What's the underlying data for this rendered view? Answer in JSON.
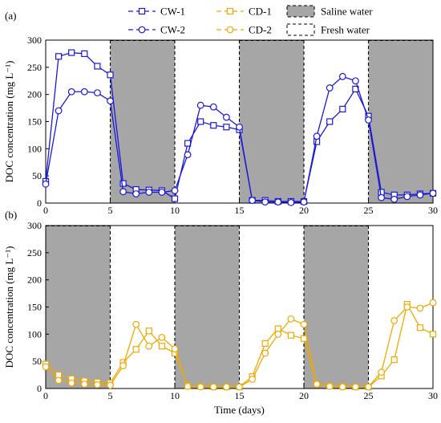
{
  "chart_data": [
    {
      "type": "line",
      "panel_label": "(a)",
      "ylabel": "DOC concentration (mg L⁻¹)",
      "xlabel": "",
      "xlim": [
        0,
        30
      ],
      "ylim": [
        0,
        300
      ],
      "xticks": [
        0,
        5,
        10,
        15,
        20,
        25,
        30
      ],
      "yticks": [
        0,
        50,
        100,
        150,
        200,
        250,
        300
      ],
      "grid": false,
      "shaded_periods": [
        {
          "type": "saline",
          "x": [
            5,
            10
          ]
        },
        {
          "type": "fresh",
          "x": [
            10,
            15
          ]
        },
        {
          "type": "saline",
          "x": [
            15,
            20
          ]
        },
        {
          "type": "fresh",
          "x": [
            20,
            25
          ]
        },
        {
          "type": "saline",
          "x": [
            25,
            30
          ]
        }
      ],
      "series": [
        {
          "name": "CW-1",
          "marker": "square",
          "color": "#1a1ad6",
          "x": [
            0,
            1,
            2,
            3,
            4,
            5,
            6,
            7,
            8,
            9,
            10,
            11,
            12,
            13,
            14,
            15,
            16,
            17,
            18,
            19,
            20,
            21,
            22,
            23,
            24,
            25,
            26,
            27,
            28,
            29,
            30
          ],
          "y": [
            40,
            270,
            277,
            275,
            252,
            236,
            36,
            25,
            24,
            23,
            8,
            110,
            150,
            143,
            140,
            135,
            5,
            5,
            3,
            3,
            3,
            113,
            150,
            173,
            210,
            160,
            20,
            15,
            15,
            17,
            18
          ]
        },
        {
          "name": "CW-2",
          "marker": "circle",
          "color": "#1a1ad6",
          "x": [
            0,
            1,
            2,
            3,
            4,
            5,
            6,
            7,
            8,
            9,
            10,
            11,
            12,
            13,
            14,
            15,
            16,
            17,
            18,
            19,
            20,
            21,
            22,
            23,
            24,
            25,
            26,
            27,
            28,
            29,
            30
          ],
          "y": [
            35,
            170,
            205,
            205,
            203,
            188,
            21,
            17,
            20,
            20,
            23,
            89,
            180,
            177,
            158,
            140,
            5,
            2,
            2,
            1,
            2,
            123,
            212,
            233,
            225,
            153,
            10,
            7,
            12,
            15,
            18
          ]
        }
      ]
    },
    {
      "type": "line",
      "panel_label": "(b)",
      "ylabel": "DOC concentration (mg L⁻¹)",
      "xlabel": "Time (days)",
      "xlim": [
        0,
        30
      ],
      "ylim": [
        0,
        300
      ],
      "xticks": [
        0,
        5,
        10,
        15,
        20,
        25,
        30
      ],
      "yticks": [
        0,
        50,
        100,
        150,
        200,
        250,
        300
      ],
      "grid": false,
      "shaded_periods": [
        {
          "type": "saline",
          "x": [
            0,
            5
          ]
        },
        {
          "type": "fresh",
          "x": [
            5,
            10
          ]
        },
        {
          "type": "saline",
          "x": [
            10,
            15
          ]
        },
        {
          "type": "fresh",
          "x": [
            15,
            20
          ]
        },
        {
          "type": "saline",
          "x": [
            20,
            25
          ]
        },
        {
          "type": "fresh",
          "x": [
            25,
            30
          ]
        }
      ],
      "series": [
        {
          "name": "CD-1",
          "marker": "square",
          "color": "#f0a800",
          "x": [
            0,
            1,
            2,
            3,
            4,
            5,
            6,
            7,
            8,
            9,
            10,
            11,
            12,
            13,
            14,
            15,
            16,
            17,
            18,
            19,
            20,
            21,
            22,
            23,
            24,
            25,
            26,
            27,
            28,
            29,
            30
          ],
          "y": [
            45,
            25,
            18,
            14,
            12,
            10,
            48,
            72,
            106,
            78,
            65,
            5,
            4,
            3,
            3,
            3,
            22,
            83,
            110,
            98,
            92,
            8,
            5,
            4,
            3,
            3,
            23,
            53,
            155,
            112,
            100
          ]
        },
        {
          "name": "CD-2",
          "marker": "circle",
          "color": "#f0a800",
          "x": [
            0,
            1,
            2,
            3,
            4,
            5,
            6,
            7,
            8,
            9,
            10,
            11,
            12,
            13,
            14,
            15,
            16,
            17,
            18,
            19,
            20,
            21,
            22,
            23,
            24,
            25,
            26,
            27,
            28,
            29,
            30
          ],
          "y": [
            40,
            15,
            10,
            8,
            7,
            6,
            42,
            118,
            78,
            94,
            73,
            4,
            3,
            3,
            3,
            3,
            17,
            65,
            100,
            128,
            118,
            8,
            4,
            3,
            3,
            3,
            30,
            125,
            150,
            148,
            158
          ]
        }
      ]
    }
  ],
  "legend": {
    "placement": "top",
    "items": [
      {
        "label": "CW-1",
        "kind": "line",
        "marker": "square",
        "color": "#1a1ad6"
      },
      {
        "label": "CD-1",
        "kind": "line",
        "marker": "square",
        "color": "#f0a800"
      },
      {
        "label": "Saline water",
        "kind": "patch",
        "fill": "#a6a6a6"
      },
      {
        "label": "CW-2",
        "kind": "line",
        "marker": "circle",
        "color": "#1a1ad6"
      },
      {
        "label": "CD-2",
        "kind": "line",
        "marker": "circle",
        "color": "#f0a800"
      },
      {
        "label": "Fresh water",
        "kind": "patch",
        "fill": "#ffffff"
      }
    ]
  },
  "colors": {
    "saline_fill": "#a6a6a6",
    "blue": "#1a1ad6",
    "orange": "#f0a800"
  }
}
